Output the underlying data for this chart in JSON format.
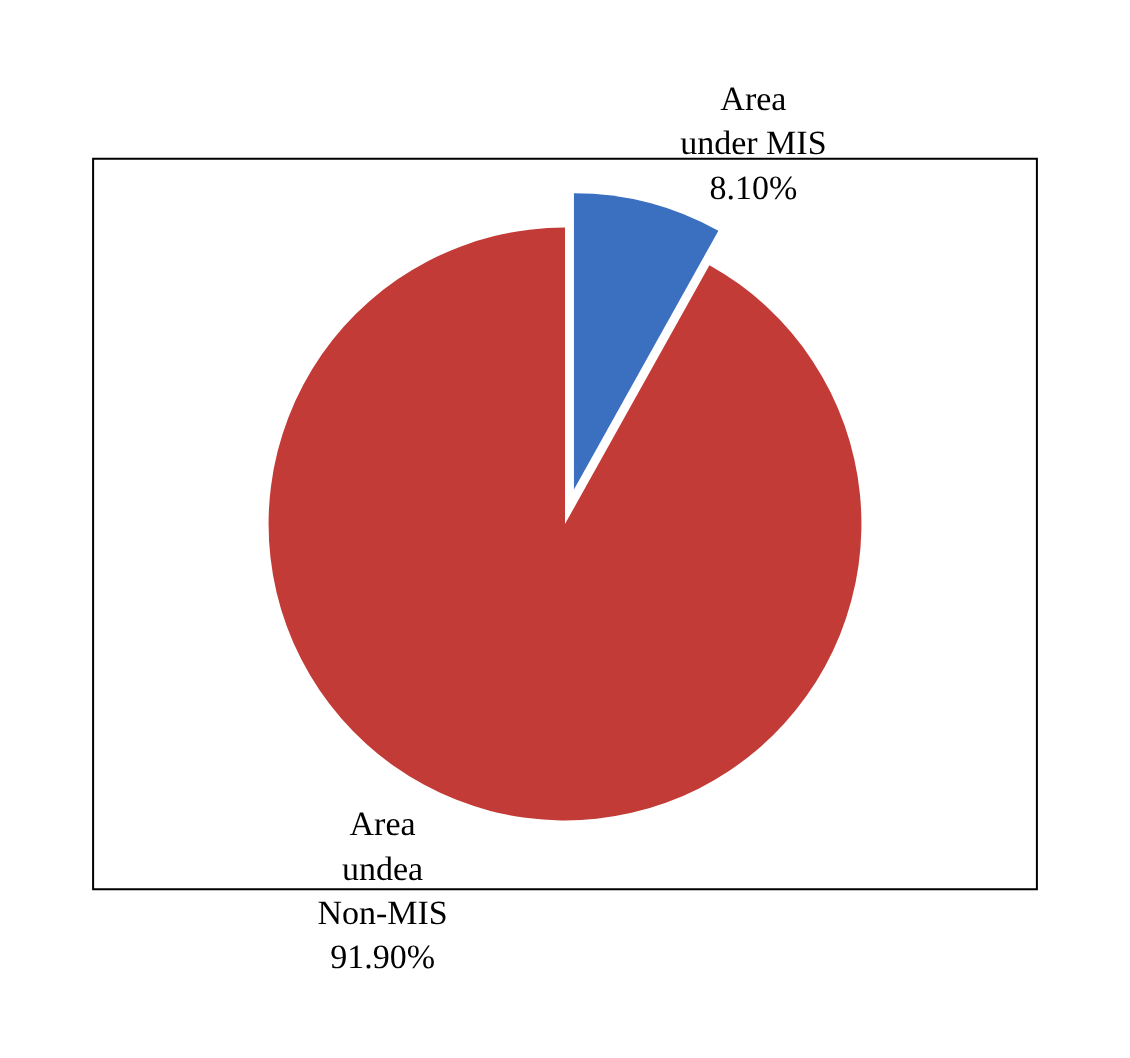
{
  "chart_data": {
    "type": "pie",
    "categories": [
      "Area under MIS",
      "Area undea Non-MIS"
    ],
    "values": [
      8.1,
      91.9
    ],
    "value_labels": [
      "8.10%",
      "91.90%"
    ],
    "colors": [
      "#3b6fbf",
      "#c23b36"
    ],
    "legend": false
  }
}
